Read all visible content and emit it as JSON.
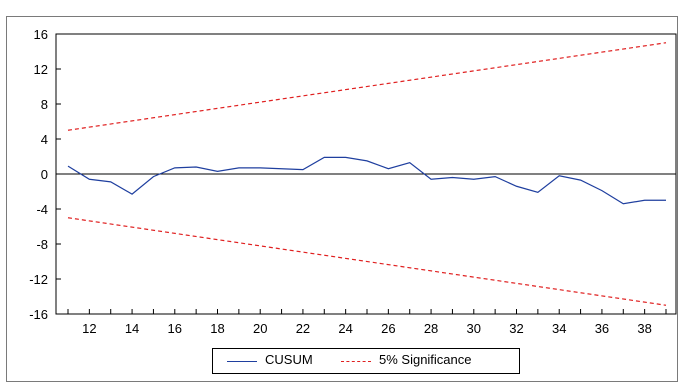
{
  "chart_data": {
    "type": "line",
    "title": "",
    "xlabel": "",
    "ylabel": "",
    "xlim": [
      11,
      39
    ],
    "ylim": [
      -16,
      16
    ],
    "x_ticks": [
      12,
      14,
      16,
      18,
      20,
      22,
      24,
      26,
      28,
      30,
      32,
      34,
      36,
      38
    ],
    "y_ticks": [
      16,
      12,
      8,
      4,
      0,
      -4,
      -8,
      -12,
      -16
    ],
    "grid": false,
    "legend_position": "bottom",
    "series": [
      {
        "name": "CUSUM",
        "color": "#1f3f9f",
        "style": "solid",
        "x": [
          11,
          12,
          13,
          14,
          15,
          16,
          17,
          18,
          19,
          20,
          21,
          22,
          23,
          24,
          25,
          26,
          27,
          28,
          29,
          30,
          31,
          32,
          33,
          34,
          35,
          36,
          37,
          38,
          39
        ],
        "y": [
          0.9,
          -0.6,
          -0.9,
          -2.3,
          -0.3,
          0.7,
          0.8,
          0.3,
          0.7,
          0.7,
          0.6,
          0.5,
          1.9,
          1.9,
          1.5,
          0.6,
          1.3,
          -0.6,
          -0.4,
          -0.6,
          -0.3,
          -1.4,
          -2.1,
          -0.2,
          -0.7,
          -1.9,
          -3.4,
          -3.0,
          -3.0
        ]
      },
      {
        "name": "5% Significance",
        "color": "#e02020",
        "style": "dashed",
        "bands": [
          {
            "x": [
              11,
              39
            ],
            "y": [
              5,
              15
            ]
          },
          {
            "x": [
              11,
              39
            ],
            "y": [
              -5,
              -15
            ]
          }
        ]
      }
    ]
  }
}
